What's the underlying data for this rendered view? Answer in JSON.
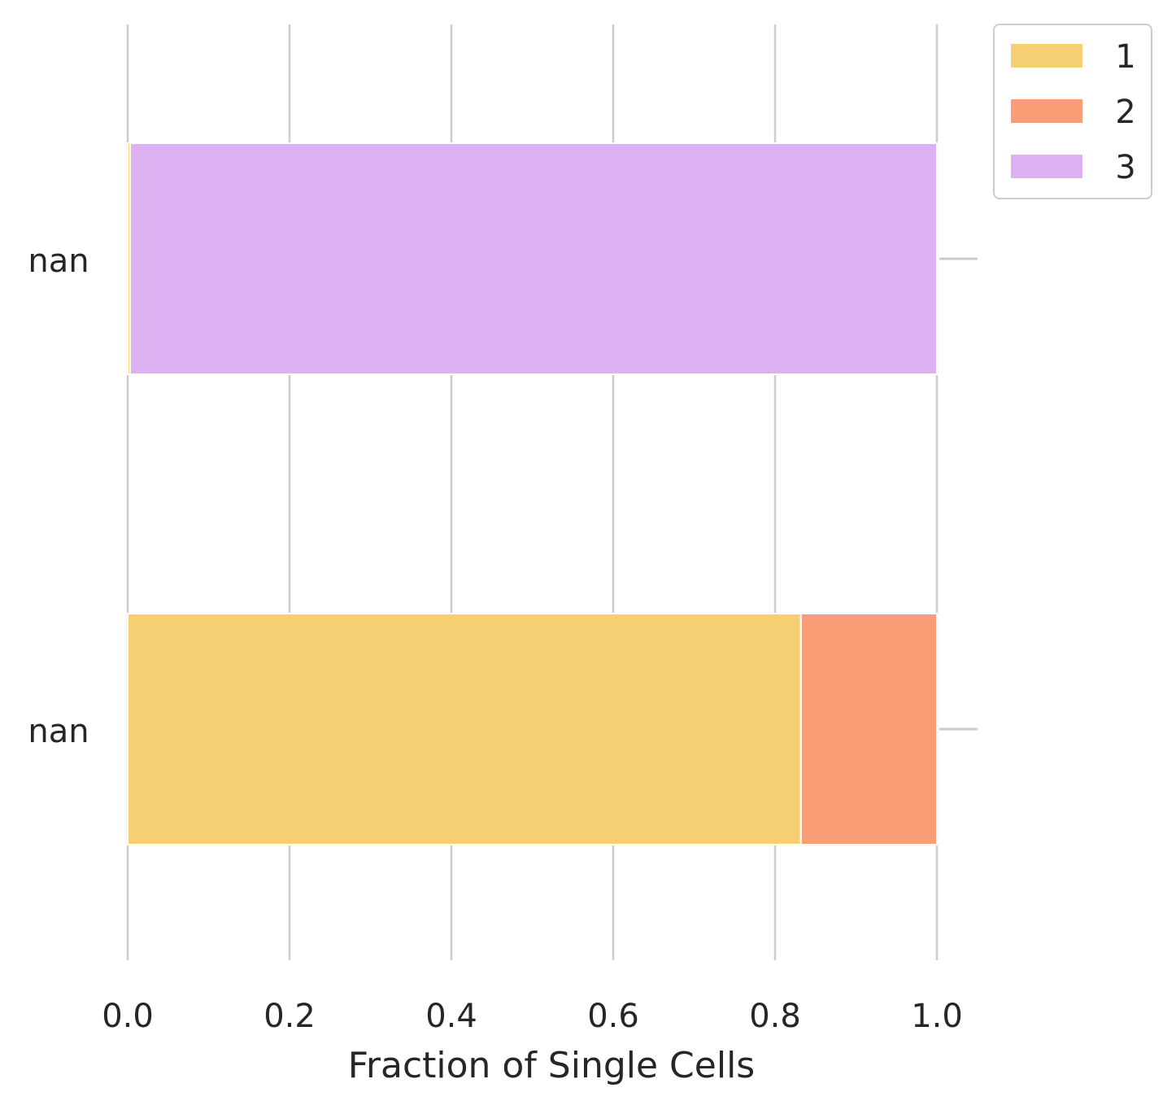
{
  "chart_data": {
    "type": "bar",
    "orientation": "horizontal",
    "stacked": true,
    "categories": [
      "nan",
      "nan"
    ],
    "series": [
      {
        "name": "1",
        "color": "#F5CF72",
        "values": [
          0.003,
          0.832
        ]
      },
      {
        "name": "2",
        "color": "#F89D76",
        "values": [
          0.0,
          0.168
        ]
      },
      {
        "name": "3",
        "color": "#DDB1F2",
        "values": [
          0.997,
          0.0
        ]
      }
    ],
    "xlabel": "Fraction of Single Cells",
    "ylabel": "",
    "xlim": [
      0.0,
      1.05
    ],
    "xticks": [
      "0.0",
      "0.2",
      "0.4",
      "0.6",
      "0.8",
      "1.0"
    ],
    "grid": "vertical",
    "grid_color": "#CCCCCC",
    "legend_position": "upper-right-outside"
  }
}
